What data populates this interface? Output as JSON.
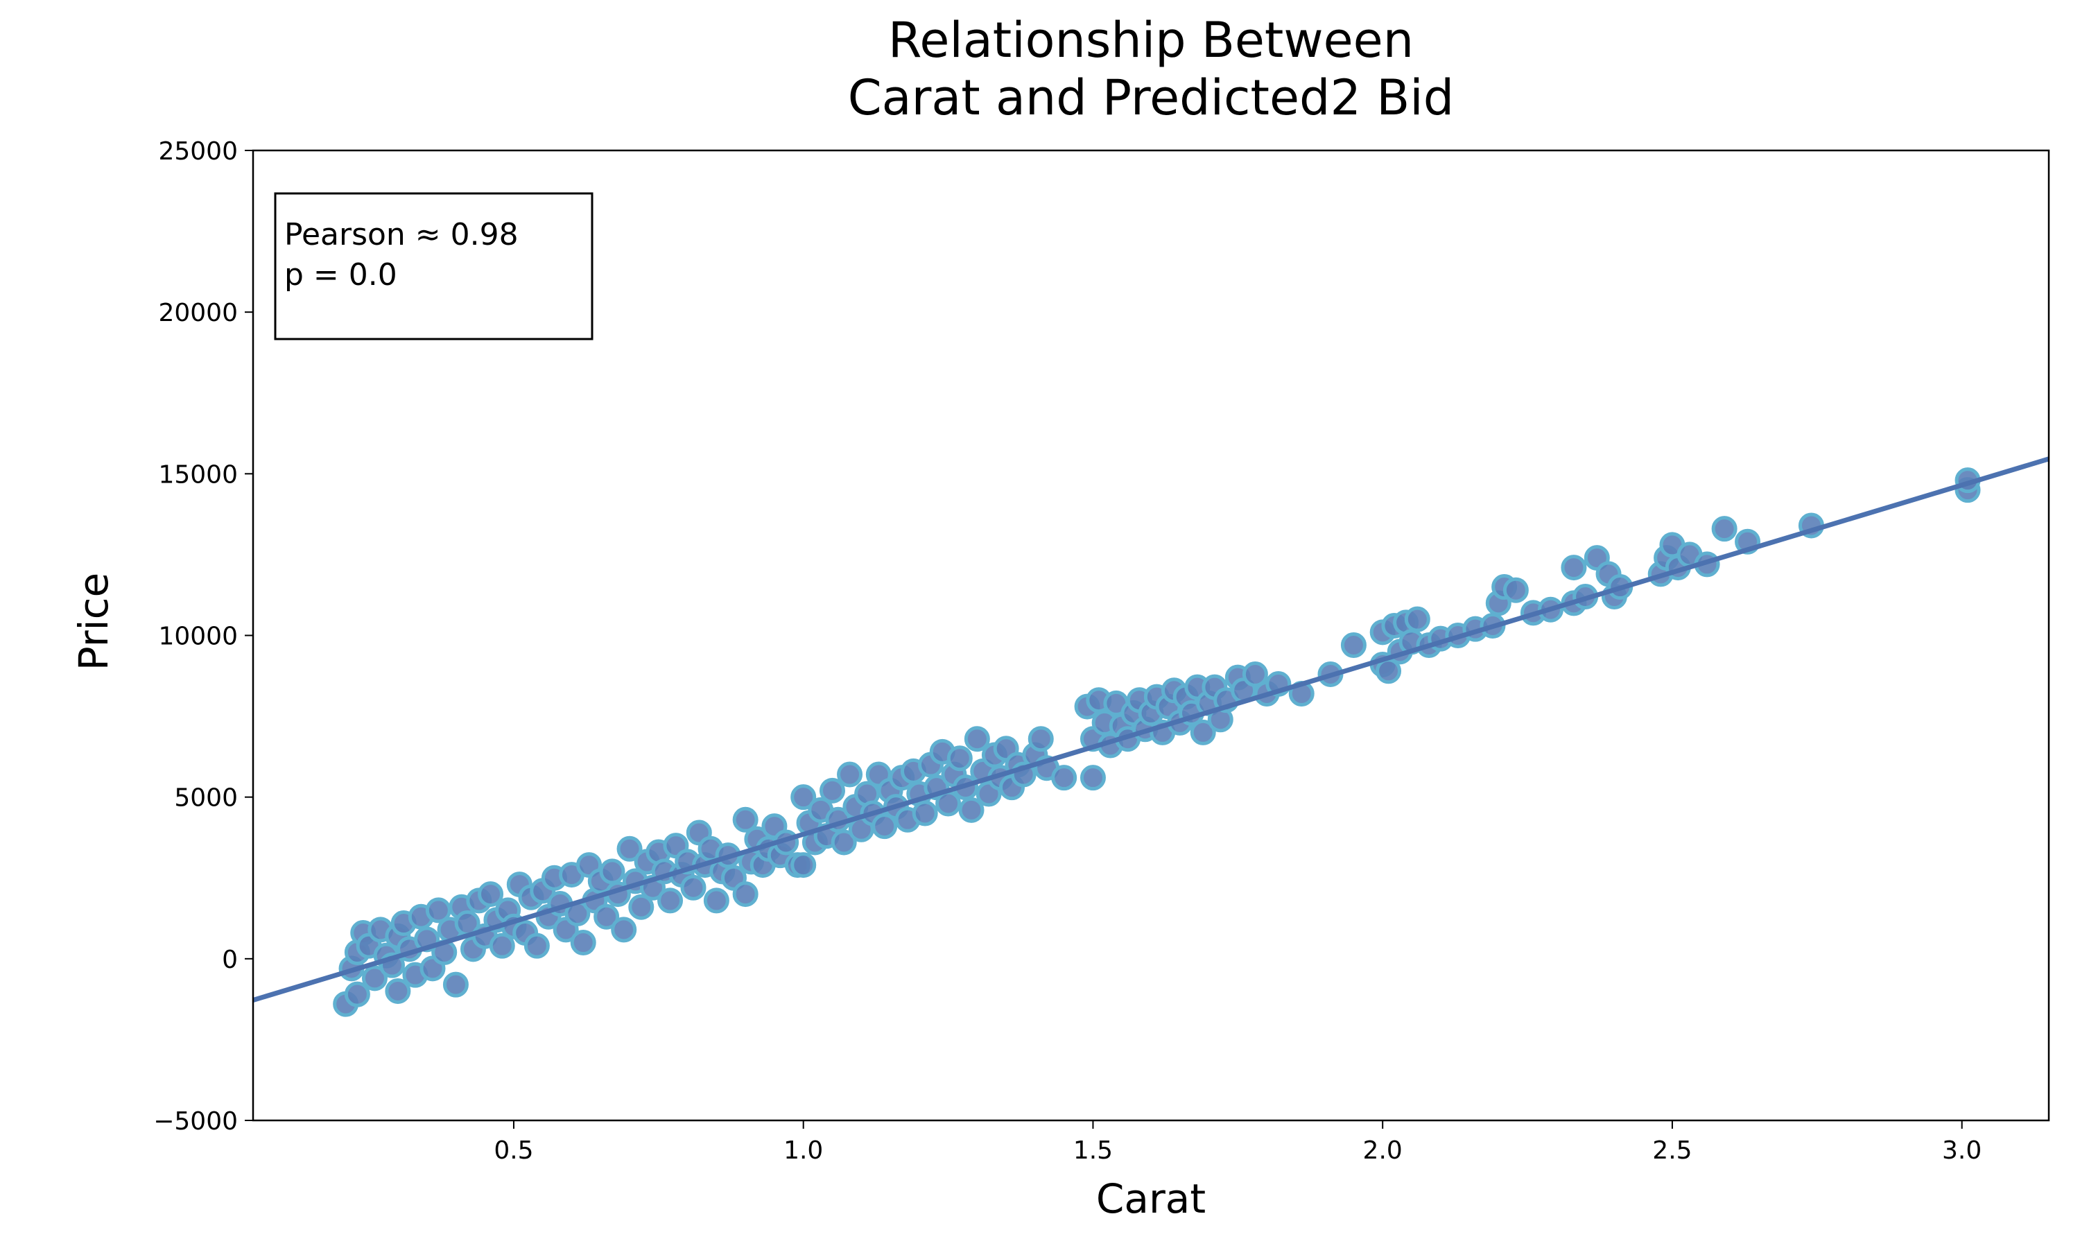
{
  "chart_data": {
    "type": "scatter",
    "title_lines": [
      "Relationship Between",
      "Carat and Predicted2 Bid"
    ],
    "xlabel": "Carat",
    "ylabel": "Price",
    "xlim": [
      0.05,
      3.15
    ],
    "ylim": [
      -5000,
      25000
    ],
    "x_ticks": [
      0.5,
      1.0,
      1.5,
      2.0,
      2.5,
      3.0
    ],
    "x_tick_labels": [
      "0.5",
      "1.0",
      "1.5",
      "2.0",
      "2.5",
      "3.0"
    ],
    "y_ticks": [
      -5000,
      0,
      5000,
      10000,
      15000,
      20000,
      25000
    ],
    "y_tick_labels": [
      "−5000",
      "0",
      "5000",
      "10000",
      "15000",
      "20000",
      "25000"
    ],
    "grid": false,
    "annotation": {
      "lines": [
        "Pearson ≈ 0.98",
        "p = 0.0"
      ],
      "placement": "top-left"
    },
    "regression_line": {
      "slope": 5400,
      "intercept": -1550
    },
    "colors": {
      "point_fill": "#5b7fb8",
      "point_edge": "#5fb0d0",
      "line": "#4c72b0"
    },
    "series": [
      {
        "points": [
          [
            0.21,
            -1400
          ],
          [
            0.22,
            -300
          ],
          [
            0.23,
            200
          ],
          [
            0.23,
            -1100
          ],
          [
            0.24,
            800
          ],
          [
            0.25,
            400
          ],
          [
            0.26,
            -600
          ],
          [
            0.27,
            900
          ],
          [
            0.28,
            100
          ],
          [
            0.29,
            -200
          ],
          [
            0.3,
            700
          ],
          [
            0.3,
            -1000
          ],
          [
            0.31,
            1100
          ],
          [
            0.32,
            300
          ],
          [
            0.33,
            -500
          ],
          [
            0.34,
            1300
          ],
          [
            0.35,
            600
          ],
          [
            0.36,
            -300
          ],
          [
            0.37,
            1500
          ],
          [
            0.38,
            200
          ],
          [
            0.39,
            900
          ],
          [
            0.4,
            -800
          ],
          [
            0.41,
            1600
          ],
          [
            0.42,
            1100
          ],
          [
            0.43,
            300
          ],
          [
            0.44,
            1800
          ],
          [
            0.45,
            700
          ],
          [
            0.46,
            2000
          ],
          [
            0.47,
            1200
          ],
          [
            0.48,
            400
          ],
          [
            0.49,
            1500
          ],
          [
            0.5,
            1000
          ],
          [
            0.51,
            2300
          ],
          [
            0.52,
            800
          ],
          [
            0.53,
            1900
          ],
          [
            0.54,
            400
          ],
          [
            0.55,
            2100
          ],
          [
            0.56,
            1300
          ],
          [
            0.57,
            2500
          ],
          [
            0.58,
            1700
          ],
          [
            0.59,
            900
          ],
          [
            0.6,
            2600
          ],
          [
            0.61,
            1400
          ],
          [
            0.62,
            500
          ],
          [
            0.63,
            2900
          ],
          [
            0.64,
            1800
          ],
          [
            0.65,
            2400
          ],
          [
            0.66,
            1300
          ],
          [
            0.67,
            2700
          ],
          [
            0.68,
            2000
          ],
          [
            0.69,
            900
          ],
          [
            0.7,
            3400
          ],
          [
            0.71,
            2400
          ],
          [
            0.72,
            1600
          ],
          [
            0.73,
            3000
          ],
          [
            0.74,
            2200
          ],
          [
            0.75,
            3300
          ],
          [
            0.76,
            2700
          ],
          [
            0.77,
            1800
          ],
          [
            0.78,
            3500
          ],
          [
            0.79,
            2600
          ],
          [
            0.8,
            3000
          ],
          [
            0.81,
            2200
          ],
          [
            0.82,
            3900
          ],
          [
            0.83,
            2900
          ],
          [
            0.84,
            3400
          ],
          [
            0.85,
            1800
          ],
          [
            0.86,
            2700
          ],
          [
            0.87,
            3200
          ],
          [
            0.88,
            2500
          ],
          [
            0.9,
            4300
          ],
          [
            0.9,
            2000
          ],
          [
            0.91,
            3000
          ],
          [
            0.92,
            3700
          ],
          [
            0.93,
            2900
          ],
          [
            0.94,
            3400
          ],
          [
            0.95,
            4100
          ],
          [
            0.96,
            3200
          ],
          [
            0.97,
            3600
          ],
          [
            0.99,
            2900
          ],
          [
            1.0,
            5000
          ],
          [
            1.0,
            2900
          ],
          [
            1.01,
            4200
          ],
          [
            1.02,
            3600
          ],
          [
            1.03,
            4600
          ],
          [
            1.04,
            3800
          ],
          [
            1.05,
            5200
          ],
          [
            1.06,
            4300
          ],
          [
            1.07,
            3600
          ],
          [
            1.08,
            5700
          ],
          [
            1.09,
            4700
          ],
          [
            1.1,
            4000
          ],
          [
            1.11,
            5100
          ],
          [
            1.12,
            4500
          ],
          [
            1.13,
            5700
          ],
          [
            1.14,
            4100
          ],
          [
            1.15,
            5200
          ],
          [
            1.16,
            4700
          ],
          [
            1.17,
            5600
          ],
          [
            1.18,
            4300
          ],
          [
            1.19,
            5800
          ],
          [
            1.2,
            5100
          ],
          [
            1.21,
            4500
          ],
          [
            1.22,
            6000
          ],
          [
            1.23,
            5300
          ],
          [
            1.24,
            6400
          ],
          [
            1.25,
            4800
          ],
          [
            1.26,
            5700
          ],
          [
            1.27,
            6200
          ],
          [
            1.28,
            5300
          ],
          [
            1.29,
            4600
          ],
          [
            1.3,
            6800
          ],
          [
            1.31,
            5800
          ],
          [
            1.32,
            5100
          ],
          [
            1.33,
            6300
          ],
          [
            1.34,
            5600
          ],
          [
            1.35,
            6500
          ],
          [
            1.36,
            5300
          ],
          [
            1.37,
            6000
          ],
          [
            1.38,
            5700
          ],
          [
            1.4,
            6300
          ],
          [
            1.41,
            6800
          ],
          [
            1.42,
            5900
          ],
          [
            1.45,
            5600
          ],
          [
            1.49,
            7800
          ],
          [
            1.5,
            5600
          ],
          [
            1.5,
            6800
          ],
          [
            1.51,
            8000
          ],
          [
            1.52,
            7300
          ],
          [
            1.53,
            6600
          ],
          [
            1.54,
            7900
          ],
          [
            1.55,
            7200
          ],
          [
            1.56,
            6800
          ],
          [
            1.57,
            7600
          ],
          [
            1.58,
            8000
          ],
          [
            1.59,
            7100
          ],
          [
            1.6,
            7600
          ],
          [
            1.61,
            8100
          ],
          [
            1.62,
            7000
          ],
          [
            1.63,
            7800
          ],
          [
            1.64,
            8300
          ],
          [
            1.65,
            7300
          ],
          [
            1.66,
            8100
          ],
          [
            1.67,
            7600
          ],
          [
            1.68,
            8400
          ],
          [
            1.69,
            7000
          ],
          [
            1.7,
            7900
          ],
          [
            1.71,
            8400
          ],
          [
            1.72,
            7400
          ],
          [
            1.73,
            8000
          ],
          [
            1.75,
            8700
          ],
          [
            1.76,
            8300
          ],
          [
            1.78,
            8800
          ],
          [
            1.8,
            8200
          ],
          [
            1.82,
            8500
          ],
          [
            1.86,
            8200
          ],
          [
            1.91,
            8800
          ],
          [
            1.95,
            9700
          ],
          [
            2.0,
            9100
          ],
          [
            2.0,
            10100
          ],
          [
            2.01,
            8900
          ],
          [
            2.02,
            10300
          ],
          [
            2.03,
            9500
          ],
          [
            2.04,
            10400
          ],
          [
            2.05,
            9800
          ],
          [
            2.06,
            10500
          ],
          [
            2.08,
            9700
          ],
          [
            2.1,
            9900
          ],
          [
            2.13,
            10000
          ],
          [
            2.16,
            10200
          ],
          [
            2.19,
            10300
          ],
          [
            2.2,
            11000
          ],
          [
            2.21,
            11500
          ],
          [
            2.23,
            11400
          ],
          [
            2.26,
            10700
          ],
          [
            2.29,
            10800
          ],
          [
            2.33,
            11000
          ],
          [
            2.33,
            12100
          ],
          [
            2.35,
            11200
          ],
          [
            2.37,
            12400
          ],
          [
            2.39,
            11900
          ],
          [
            2.4,
            11200
          ],
          [
            2.41,
            11500
          ],
          [
            2.48,
            11900
          ],
          [
            2.49,
            12400
          ],
          [
            2.5,
            12800
          ],
          [
            2.51,
            12100
          ],
          [
            2.53,
            12500
          ],
          [
            2.56,
            12200
          ],
          [
            2.59,
            13300
          ],
          [
            2.63,
            12900
          ],
          [
            2.74,
            13400
          ],
          [
            3.01,
            14500
          ],
          [
            3.01,
            14800
          ]
        ]
      }
    ]
  }
}
